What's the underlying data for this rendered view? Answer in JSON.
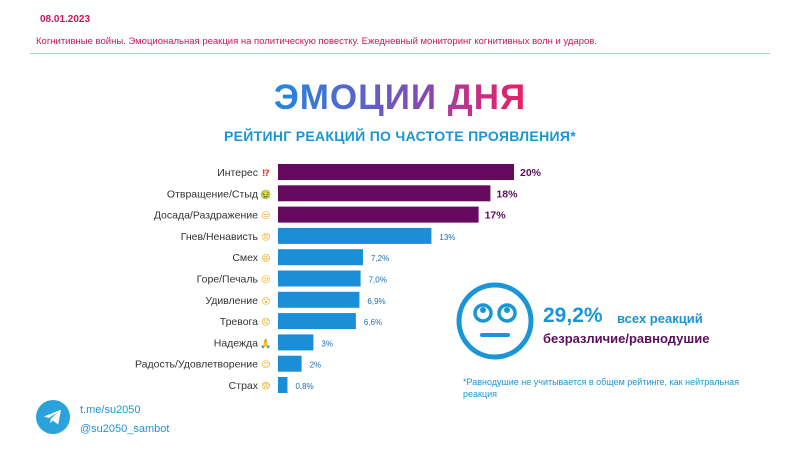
{
  "header": {
    "date": "08.01.2023",
    "subtitle": "Когнитивные войны. Эмоциональная реакция на политическую повестку. Ежедневный мониторинг когнитивных волн и ударов."
  },
  "title": {
    "words": [
      {
        "text": "ЭМОЦИИ",
        "color_start": "#1e88e5",
        "color_end": "#8e44ad"
      },
      {
        "text": "ДНЯ",
        "color_start": "#b03a9a",
        "color_end": "#e91e63"
      }
    ]
  },
  "chart_data": {
    "type": "bar",
    "orientation": "horizontal",
    "title": "РЕЙТИНГ РЕАКЦИЙ ПО ЧАСТОТЕ ПРОЯВЛЕНИЯ*",
    "categories": [
      "Интерес",
      "Отвращение/Стыд",
      "Досада/Раздражение",
      "Гнев/Ненависть",
      "Смех",
      "Горе/Печаль",
      "Удивление",
      "Тревога",
      "Надежда",
      "Радость/Удовлетворение",
      "Страх"
    ],
    "icons": [
      "⁉",
      "🤢",
      "😒",
      "😡",
      "😄",
      "😢",
      "😮",
      "😟",
      "🙏",
      "😊",
      "😨"
    ],
    "values": [
      20,
      18,
      17,
      13,
      7.2,
      7.0,
      6.9,
      6.6,
      3,
      2,
      0.8
    ],
    "value_labels": [
      "20%",
      "18%",
      "17%",
      "13%",
      "7,2%",
      "7,0%",
      "6,9%",
      "6,6%",
      "3%",
      "2%",
      "0,8%"
    ],
    "colors": [
      "#660a5f",
      "#660a5f",
      "#660a5f",
      "#1a8fd8",
      "#1a8fd8",
      "#1a8fd8",
      "#1a8fd8",
      "#1a8fd8",
      "#1a8fd8",
      "#1a8fd8",
      "#1a8fd8"
    ],
    "highlight_top": 3,
    "xlim": [
      0,
      20
    ],
    "grid": false
  },
  "callout": {
    "percent": "29,2%",
    "text1": "всех реакций",
    "text2": "безразличие/равнодушие",
    "icon": "neutral-face-icon"
  },
  "note": "*Равнодушие не учитывается в общем рейтинге, как нейтральная реакция",
  "footer": {
    "link": "t.me/su2050",
    "handle": "@su2050_sambot",
    "icon": "telegram-icon"
  }
}
